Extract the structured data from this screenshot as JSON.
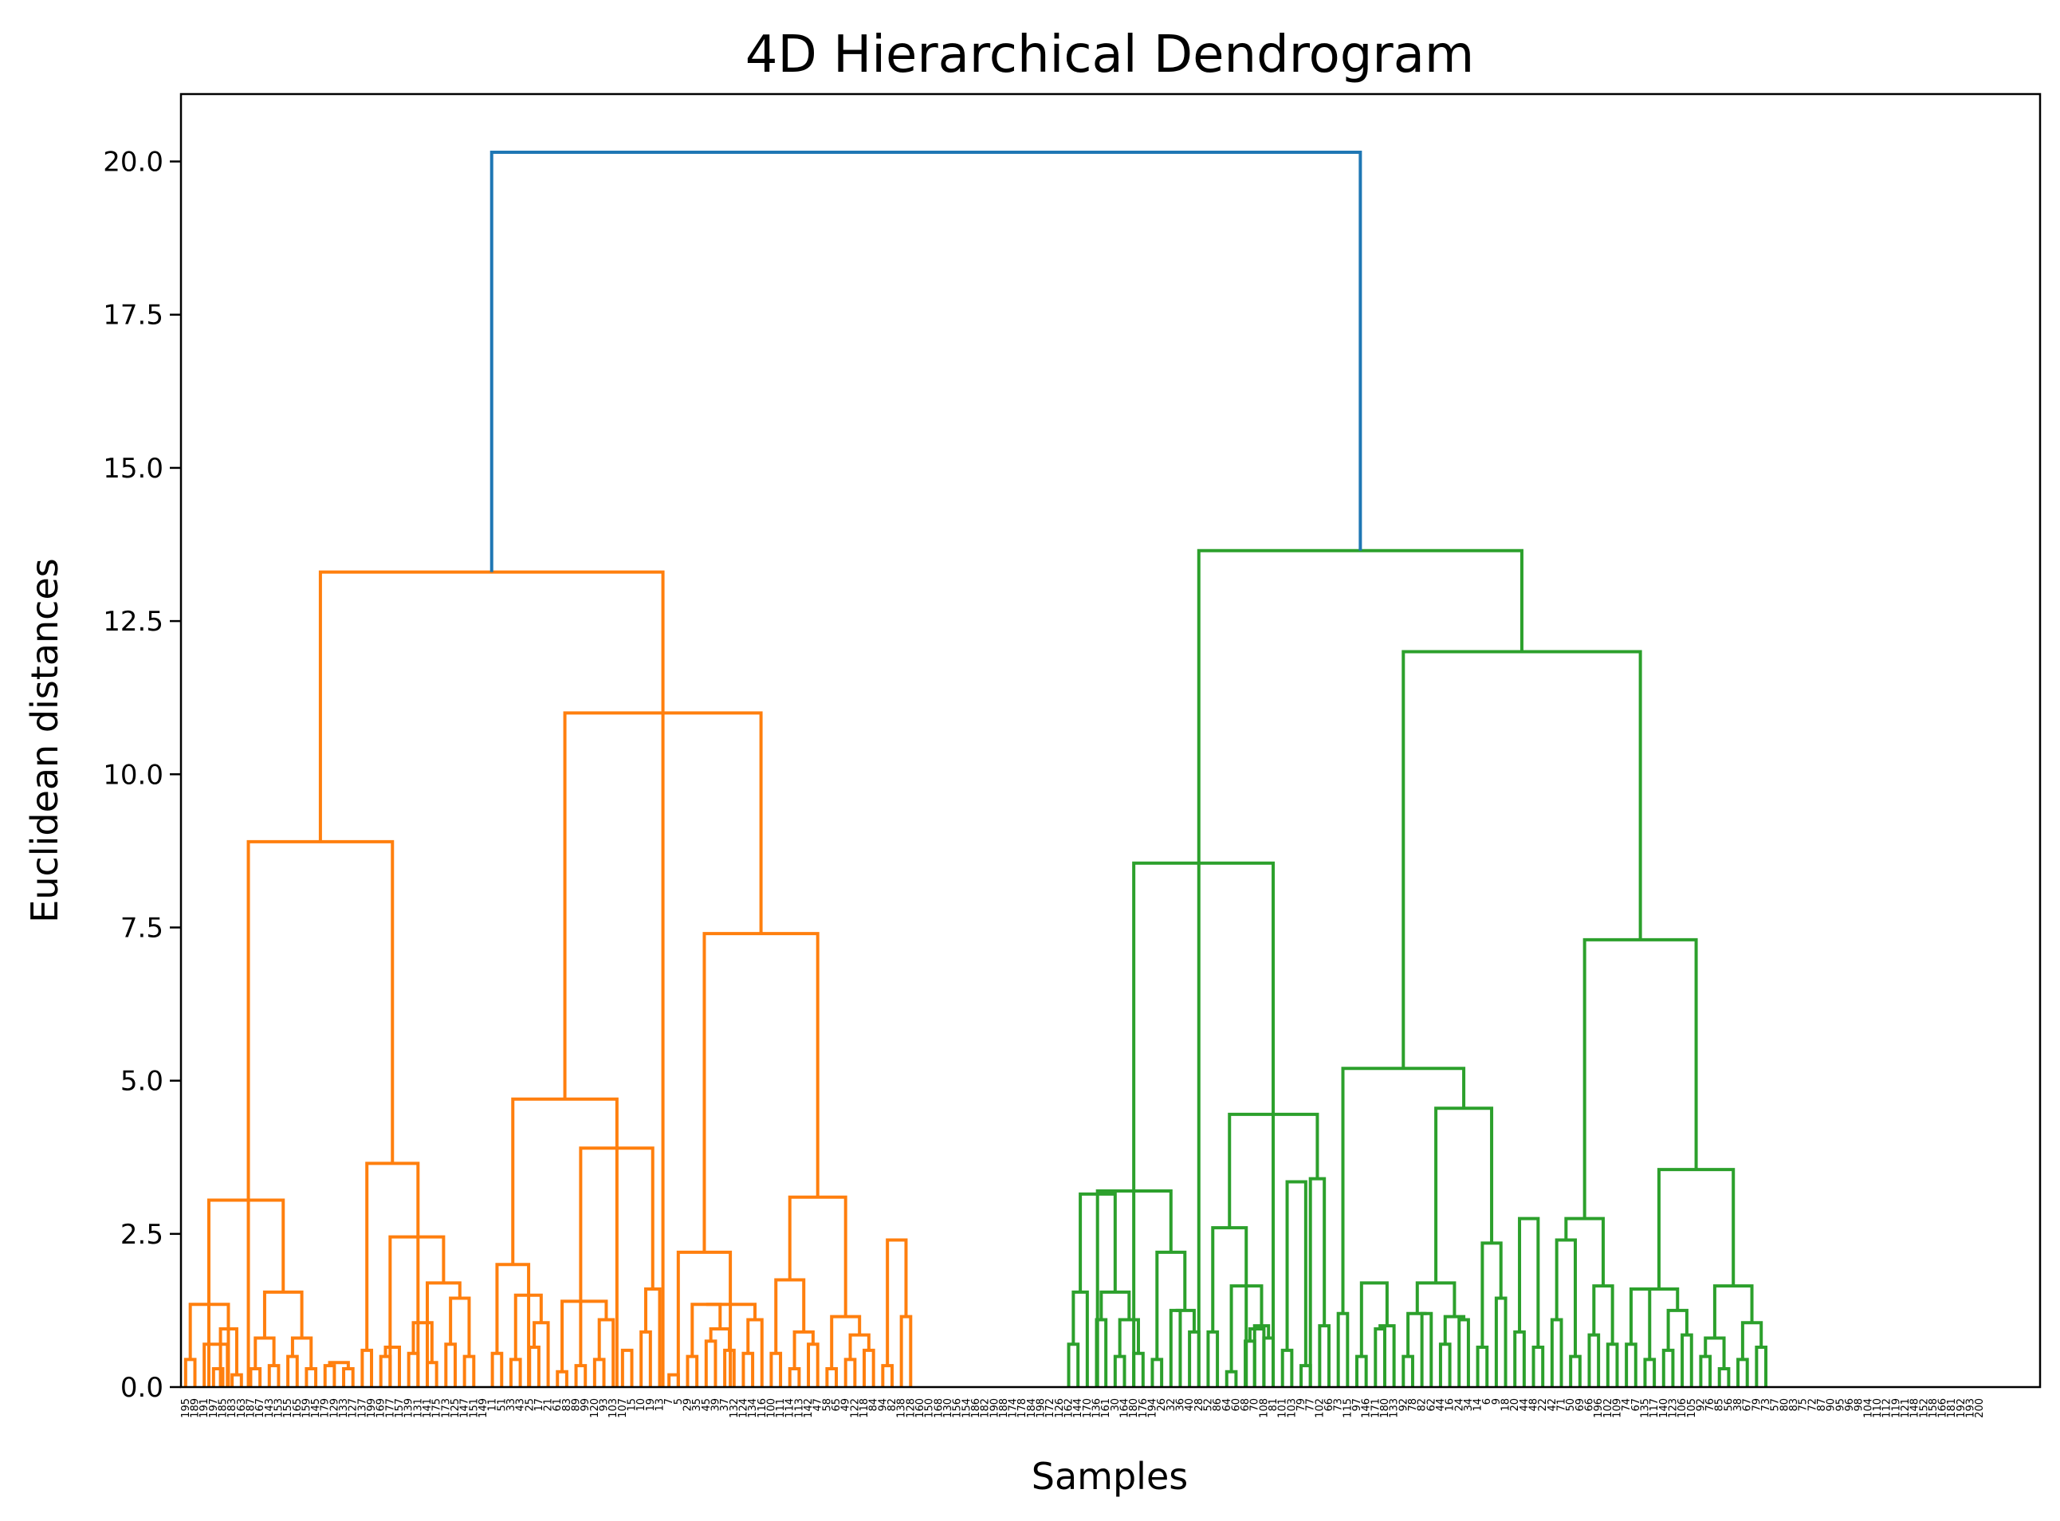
{
  "chart_data": {
    "type": "dendrogram",
    "title": "4D Hierarchical Dendrogram",
    "xlabel": "Samples",
    "ylabel": "Euclidean distances",
    "ylim": [
      0,
      21.1
    ],
    "yticks": [
      "0.0",
      "2.5",
      "5.0",
      "7.5",
      "10.0",
      "12.5",
      "15.0",
      "17.5",
      "20.0"
    ],
    "ytick_values": [
      0,
      2.5,
      5,
      7.5,
      10,
      12.5,
      15,
      17.5,
      20
    ],
    "leaf_count": 200,
    "leaf_labels": [
      "195",
      "189",
      "191",
      "197",
      "185",
      "183",
      "163",
      "187",
      "167",
      "143",
      "153",
      "155",
      "165",
      "159",
      "145",
      "179",
      "129",
      "133",
      "127",
      "137",
      "199",
      "169",
      "177",
      "157",
      "139",
      "131",
      "141",
      "175",
      "173",
      "125",
      "147",
      "151",
      "149",
      "11",
      "51",
      "33",
      "43",
      "25",
      "17",
      "21",
      "61",
      "83",
      "89",
      "99",
      "120",
      "93",
      "103",
      "107",
      "15",
      "10",
      "19",
      "13",
      "7",
      "5",
      "29",
      "35",
      "45",
      "39",
      "37",
      "132",
      "124",
      "134",
      "116",
      "100",
      "111",
      "114",
      "113",
      "142",
      "47",
      "58",
      "65",
      "49",
      "122",
      "118",
      "84",
      "94",
      "82",
      "138",
      "128",
      "160",
      "150",
      "168",
      "130",
      "156",
      "154",
      "186",
      "182",
      "190",
      "188",
      "174",
      "178",
      "184",
      "198",
      "172",
      "126",
      "162",
      "144",
      "170",
      "136",
      "161",
      "30",
      "164",
      "180",
      "176",
      "194",
      "26",
      "32",
      "36",
      "40",
      "28",
      "52",
      "86",
      "64",
      "60",
      "68",
      "70",
      "108",
      "81",
      "101",
      "103",
      "79",
      "77",
      "102",
      "66",
      "73",
      "115",
      "97",
      "146",
      "171",
      "180",
      "133",
      "92",
      "78",
      "82",
      "62",
      "44",
      "16",
      "24",
      "34",
      "14",
      "6",
      "9",
      "18",
      "20",
      "44",
      "48",
      "22",
      "42",
      "71",
      "50",
      "69",
      "66",
      "196",
      "102",
      "109",
      "74",
      "67",
      "135",
      "117",
      "140",
      "123",
      "106",
      "105",
      "92",
      "76",
      "85",
      "56",
      "38",
      "67",
      "79",
      "73",
      "57",
      "80",
      "83",
      "75",
      "72",
      "87",
      "90",
      "95",
      "96",
      "98",
      "104",
      "110",
      "112",
      "119",
      "121",
      "148",
      "152",
      "158",
      "166",
      "181",
      "192",
      "193",
      "200"
    ],
    "clusters": [
      {
        "name": "orange",
        "color": "#ff7f0e",
        "leaf_range": [
          0,
          94
        ],
        "merges": [
          [
            0,
            1,
            0.45
          ],
          [
            3,
            4,
            0.3
          ],
          [
            2,
            4.5,
            0.7
          ],
          [
            5,
            6,
            0.2
          ],
          [
            3.75,
            5.5,
            0.95
          ],
          [
            0.5,
            4.6,
            1.35
          ],
          [
            7,
            8,
            0.3
          ],
          [
            9,
            10,
            0.35
          ],
          [
            7.5,
            9.5,
            0.8
          ],
          [
            11,
            12,
            0.5
          ],
          [
            13,
            14,
            0.3
          ],
          [
            11.5,
            13.5,
            0.8
          ],
          [
            8.5,
            12.5,
            1.55
          ],
          [
            15,
            16,
            0.35
          ],
          [
            17,
            18,
            0.3
          ],
          [
            15.5,
            17.5,
            0.4
          ],
          [
            2.5,
            10.5,
            3.05
          ],
          [
            19,
            20,
            0.6
          ],
          [
            21,
            22,
            0.5
          ],
          [
            21.5,
            23,
            0.65
          ],
          [
            24,
            25,
            0.55
          ],
          [
            26,
            27,
            0.4
          ],
          [
            24.5,
            26.5,
            1.05
          ],
          [
            28,
            29,
            0.7
          ],
          [
            30,
            31,
            0.5
          ],
          [
            28.5,
            30.5,
            1.45
          ],
          [
            26,
            29.5,
            1.7
          ],
          [
            22,
            27.75,
            2.45
          ],
          [
            19.5,
            25,
            3.65
          ],
          [
            6.75,
            22.25,
            8.9
          ],
          [
            33,
            34,
            0.55
          ],
          [
            35,
            36,
            0.45
          ],
          [
            37,
            38,
            0.65
          ],
          [
            37.5,
            39,
            1.05
          ],
          [
            35.5,
            38.25,
            1.5
          ],
          [
            33.5,
            36.9,
            2.0
          ],
          [
            40,
            41,
            0.25
          ],
          [
            42,
            43,
            0.35
          ],
          [
            44,
            45,
            0.45
          ],
          [
            44.5,
            46,
            1.1
          ],
          [
            40.5,
            45.25,
            1.4
          ],
          [
            47,
            48,
            0.6
          ],
          [
            49,
            50,
            0.9
          ],
          [
            49.5,
            51,
            1.6
          ],
          [
            42.5,
            50.25,
            3.9
          ],
          [
            35.2,
            46.4,
            4.7
          ],
          [
            52,
            53,
            0.2
          ],
          [
            54,
            55,
            0.5
          ],
          [
            56,
            57,
            0.75
          ],
          [
            58,
            59,
            0.6
          ],
          [
            56.5,
            58.5,
            0.95
          ],
          [
            54.5,
            57.5,
            1.35
          ],
          [
            60,
            61,
            0.55
          ],
          [
            60.5,
            62,
            1.1
          ],
          [
            56,
            61.25,
            1.35
          ],
          [
            53,
            58.6,
            2.2
          ],
          [
            63,
            64,
            0.55
          ],
          [
            65,
            66,
            0.3
          ],
          [
            67,
            68,
            0.7
          ],
          [
            65.5,
            67.5,
            0.9
          ],
          [
            63.5,
            66.5,
            1.75
          ],
          [
            69,
            70,
            0.3
          ],
          [
            71,
            72,
            0.45
          ],
          [
            73,
            74,
            0.6
          ],
          [
            71.5,
            73.5,
            0.85
          ],
          [
            69.5,
            72.5,
            1.15
          ],
          [
            75,
            76,
            0.35
          ],
          [
            77,
            78,
            1.15
          ],
          [
            75.5,
            77.5,
            2.4
          ],
          [
            65,
            71,
            3.1
          ],
          [
            55.8,
            68,
            7.4
          ],
          [
            40.8,
            61.9,
            11.0
          ],
          [
            14.5,
            51.35,
            13.3
          ]
        ]
      },
      {
        "name": "green",
        "color": "#2ca02c",
        "leaf_range": [
          95,
          199
        ],
        "merges": [
          [
            95,
            96,
            0.7
          ],
          [
            95.5,
            97,
            1.55
          ],
          [
            98,
            99,
            1.1
          ],
          [
            100,
            101,
            0.5
          ],
          [
            102,
            103,
            0.55
          ],
          [
            100.5,
            102.5,
            1.1
          ],
          [
            98.5,
            101.5,
            1.55
          ],
          [
            96.25,
            100,
            3.15
          ],
          [
            104,
            105,
            0.45
          ],
          [
            106,
            107,
            1.25
          ],
          [
            108,
            109,
            0.9
          ],
          [
            106.5,
            108.5,
            1.25
          ],
          [
            104.5,
            107.5,
            2.2
          ],
          [
            98.1,
            106,
            3.2
          ],
          [
            110,
            111,
            0.9
          ],
          [
            112,
            113,
            0.25
          ],
          [
            114,
            115,
            0.75
          ],
          [
            114.5,
            116,
            0.95
          ],
          [
            116,
            117,
            0.8
          ],
          [
            115,
            116.5,
            1.0
          ],
          [
            112.5,
            115.75,
            1.65
          ],
          [
            110.5,
            114.1,
            2.6
          ],
          [
            118,
            119,
            0.6
          ],
          [
            120,
            121,
            0.35
          ],
          [
            118.5,
            120.5,
            3.35
          ],
          [
            122,
            123,
            1.0
          ],
          [
            121,
            122.5,
            3.4
          ],
          [
            112.3,
            121.75,
            4.45
          ],
          [
            102,
            117,
            8.55
          ],
          [
            124,
            125,
            1.2
          ],
          [
            126,
            127,
            0.5
          ],
          [
            128,
            129,
            0.95
          ],
          [
            128.5,
            130,
            1.0
          ],
          [
            126.5,
            129.25,
            1.7
          ],
          [
            131,
            132,
            0.5
          ],
          [
            133,
            134,
            1.2
          ],
          [
            131.5,
            133.5,
            1.2
          ],
          [
            135,
            136,
            0.7
          ],
          [
            137,
            138,
            1.1
          ],
          [
            135.5,
            137.5,
            1.15
          ],
          [
            132.5,
            136.5,
            1.7
          ],
          [
            139,
            140,
            0.65
          ],
          [
            141,
            142,
            1.45
          ],
          [
            139.5,
            141.5,
            2.35
          ],
          [
            134.5,
            140.5,
            4.55
          ],
          [
            124.5,
            137.5,
            5.2
          ],
          [
            143,
            144,
            0.9
          ],
          [
            145,
            146,
            0.65
          ],
          [
            143.5,
            145.5,
            2.75
          ],
          [
            147,
            148,
            1.1
          ],
          [
            149,
            150,
            0.5
          ],
          [
            147.5,
            149.5,
            2.4
          ],
          [
            151,
            152,
            0.85
          ],
          [
            153,
            154,
            0.7
          ],
          [
            151.5,
            153.5,
            1.65
          ],
          [
            148.5,
            152.5,
            2.75
          ],
          [
            155,
            156,
            0.7
          ],
          [
            157,
            158,
            0.45
          ],
          [
            155.5,
            157.5,
            1.6
          ],
          [
            159,
            160,
            0.6
          ],
          [
            161,
            162,
            0.85
          ],
          [
            159.5,
            161.5,
            1.25
          ],
          [
            156.5,
            160.5,
            1.6
          ],
          [
            163,
            164,
            0.5
          ],
          [
            165,
            166,
            0.3
          ],
          [
            163.5,
            165.5,
            0.8
          ],
          [
            167,
            168,
            0.45
          ],
          [
            169,
            170,
            0.65
          ],
          [
            167.5,
            169.5,
            1.05
          ],
          [
            164.5,
            168.5,
            1.65
          ],
          [
            158.5,
            166.5,
            3.55
          ],
          [
            150.5,
            162.5,
            7.3
          ],
          [
            131,
            156.5,
            12.0
          ],
          [
            109,
            143.75,
            13.65
          ]
        ]
      }
    ],
    "root_link": {
      "color": "#1f77b4",
      "left_height": 13.3,
      "right_height": 13.65,
      "height": 20.15
    }
  }
}
